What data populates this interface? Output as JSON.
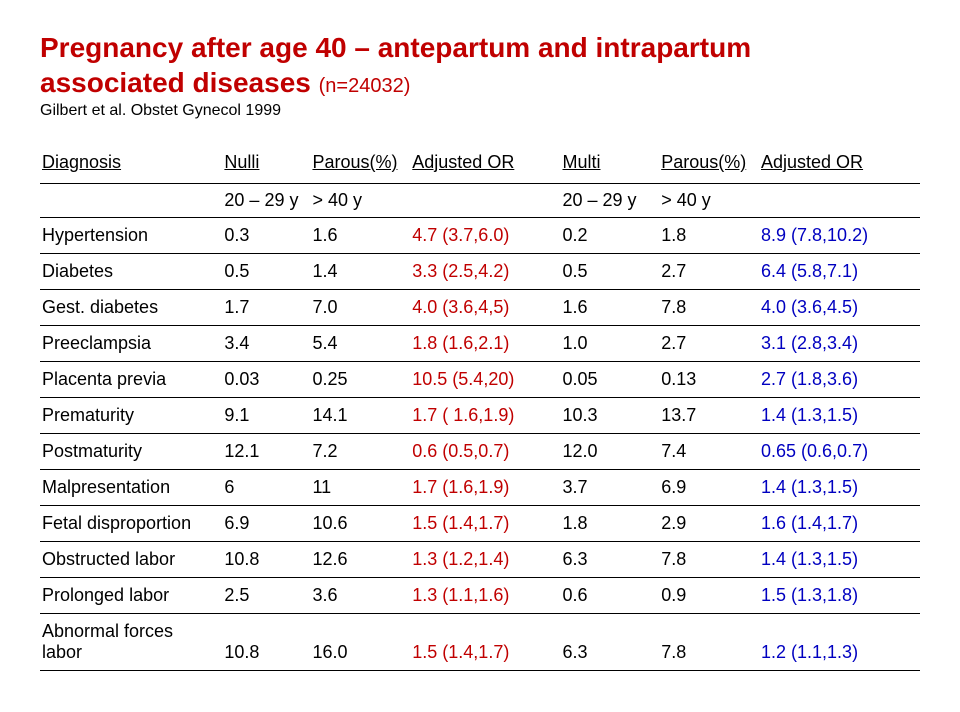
{
  "title_line1": "Pregnancy after age 40 – antepartum and intrapartum",
  "title_line2a": "associated diseases ",
  "title_line2b": "(n=24032)",
  "subtitle": "Gilbert et al. Obstet Gynecol 1999",
  "head": {
    "c0": "Diagnosis",
    "c1": "Nulli",
    "c2": "Parous(%)",
    "c3": "Adjusted OR",
    "c4": "Multi",
    "c5": "Parous(%)",
    "c6": "Adjusted OR"
  },
  "years": {
    "c1": "20 – 29 y",
    "c2": "> 40 y",
    "c4": "20 – 29 y",
    "c5": "> 40 y"
  },
  "rows": [
    {
      "d": "Hypertension",
      "a": "0.3",
      "b": "1.6",
      "or1": "4.7 (3.7,6.0)",
      "c": "0.2",
      "e": "1.8",
      "or2": "8.9 (7.8,10.2)"
    },
    {
      "d": "Diabetes",
      "a": "0.5",
      "b": "1.4",
      "or1": "3.3 (2.5,4.2)",
      "c": "0.5",
      "e": "2.7",
      "or2": "6.4 (5.8,7.1)"
    },
    {
      "d": "Gest. diabetes",
      "a": "1.7",
      "b": "7.0",
      "or1": "4.0 (3.6,4,5)",
      "c": "1.6",
      "e": "7.8",
      "or2": "4.0 (3.6,4.5)"
    },
    {
      "d": "Preeclampsia",
      "a": "3.4",
      "b": "5.4",
      "or1": "1.8 (1.6,2.1)",
      "c": "1.0",
      "e": "2.7",
      "or2": "3.1 (2.8,3.4)"
    },
    {
      "d": "Placenta previa",
      "a": "0.03",
      "b": "0.25",
      "or1": "10.5 (5.4,20)",
      "c": "0.05",
      "e": "0.13",
      "or2": "2.7 (1.8,3.6)"
    },
    {
      "d": "Prematurity",
      "a": "9.1",
      "b": "14.1",
      "or1": "1.7 ( 1.6,1.9)",
      "c": "10.3",
      "e": "13.7",
      "or2": "1.4 (1.3,1.5)"
    },
    {
      "d": "Postmaturity",
      "a": "12.1",
      "b": "7.2",
      "or1": "0.6 (0.5,0.7)",
      "c": "12.0",
      "e": "7.4",
      "or2": "0.65 (0.6,0.7)"
    },
    {
      "d": "Malpresentation",
      "a": "6",
      "b": "11",
      "or1": "1.7 (1.6,1.9)",
      "c": "3.7",
      "e": "6.9",
      "or2": "1.4 (1.3,1.5)"
    },
    {
      "d": "Fetal disproportion",
      "a": "6.9",
      "b": "10.6",
      "or1": "1.5 (1.4,1.7)",
      "c": "1.8",
      "e": "2.9",
      "or2": "1.6 (1.4,1.7)"
    },
    {
      "d": "Obstructed labor",
      "a": "10.8",
      "b": "12.6",
      "or1": "1.3 (1.2,1.4)",
      "c": "6.3",
      "e": "7.8",
      "or2": "1.4 (1.3,1.5)"
    },
    {
      "d": "Prolonged labor",
      "a": "2.5",
      "b": "3.6",
      "or1": "1.3 (1.1,1.6)",
      "c": "0.6",
      "e": "0.9",
      "or2": "1.5 (1.3,1.8)"
    },
    {
      "d": "Abnormal forces labor",
      "a": "10.8",
      "b": "16.0",
      "or1": "1.5 (1.4,1.7)",
      "c": "6.3",
      "e": "7.8",
      "or2": "1.2 (1.1,1.3)"
    }
  ],
  "style": {
    "title_color": "#c00000",
    "or1_color": "#c00000",
    "or2_color": "#0000c0",
    "text_color": "#000000",
    "background": "#ffffff",
    "font_family": "Arial",
    "title_fontsize": 28,
    "body_fontsize": 18,
    "border_color": "#000000"
  }
}
